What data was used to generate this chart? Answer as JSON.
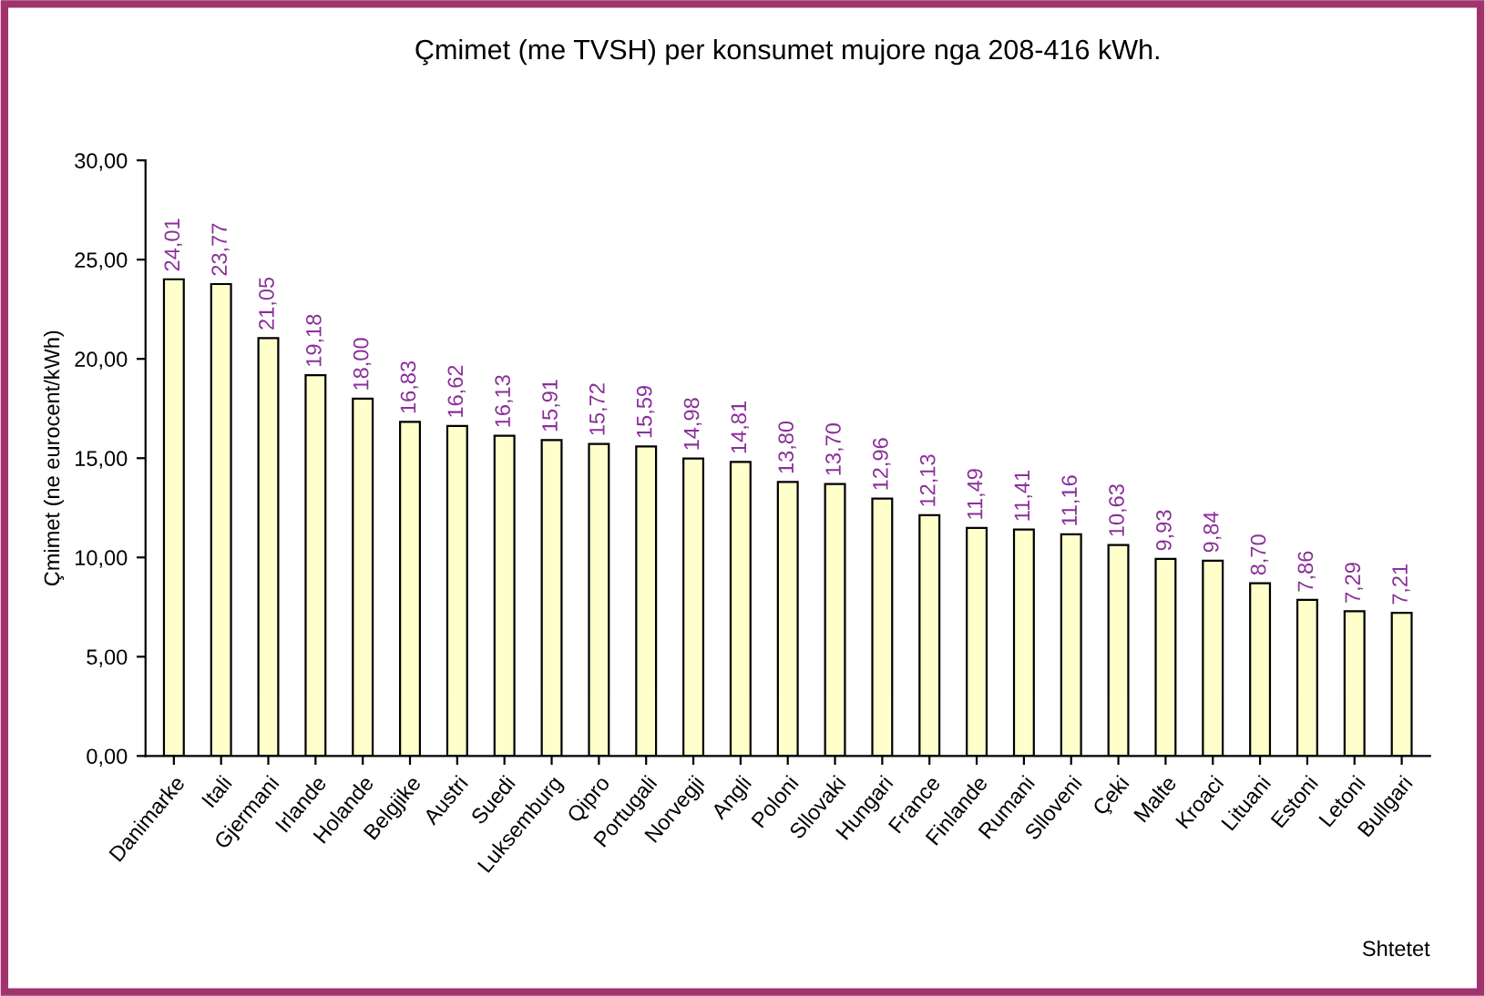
{
  "chart_data": {
    "type": "bar",
    "title": "Çmimet (me TVSH) per konsumet mujore nga 208-416 kWh.",
    "xlabel": "Shtetet",
    "ylabel": "Çmimet (ne eurocent/kWh)",
    "categories": [
      "Danimarke",
      "Itali",
      "Gjermani",
      "Irlande",
      "Holande",
      "Belgjike",
      "Austri",
      "Suedi",
      "Luksemburg",
      "Qipro",
      "Portugali",
      "Norvegji",
      "Angli",
      "Poloni",
      "Sllovaki",
      "Hungari",
      "France",
      "Finlande",
      "Rumani",
      "Slloveni",
      "Çeki",
      "Malte",
      "Kroaci",
      "Lituani",
      "Estoni",
      "Letoni",
      "Bullgari"
    ],
    "values": [
      24.01,
      23.77,
      21.05,
      19.18,
      18.0,
      16.83,
      16.62,
      16.13,
      15.91,
      15.72,
      15.59,
      14.98,
      14.81,
      13.8,
      13.7,
      12.96,
      12.13,
      11.49,
      11.41,
      11.16,
      10.63,
      9.93,
      9.84,
      8.7,
      7.86,
      7.29,
      7.21
    ],
    "value_labels": [
      "24,01",
      "23,77",
      "21,05",
      "19,18",
      "18,00",
      "16,83",
      "16,62",
      "16,13",
      "15,91",
      "15,72",
      "15,59",
      "14,98",
      "14,81",
      "13,80",
      "13,70",
      "12,96",
      "12,13",
      "11,49",
      "11,41",
      "11,16",
      "10,63",
      "9,93",
      "9,84",
      "8,70",
      "7,86",
      "7,29",
      "7,21"
    ],
    "color": "#ffffcc",
    "ylim": [
      0,
      30
    ],
    "yticks": [
      {
        "value": 0,
        "label": "0,00"
      },
      {
        "value": 5,
        "label": "5,00"
      },
      {
        "value": 10,
        "label": "10,00"
      },
      {
        "value": 15,
        "label": "15,00"
      },
      {
        "value": 20,
        "label": "20,00"
      },
      {
        "value": 25,
        "label": "25,00"
      },
      {
        "value": 30,
        "label": "30,00"
      }
    ],
    "grid": false,
    "legend": false
  }
}
